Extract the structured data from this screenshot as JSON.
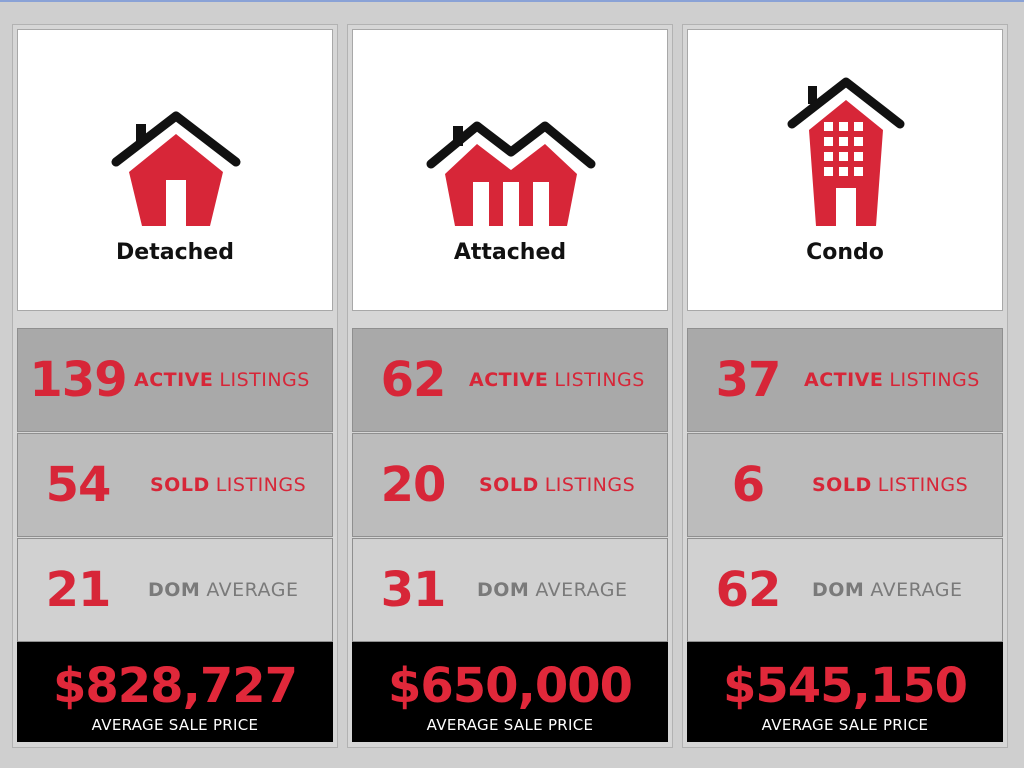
{
  "colors": {
    "accent_red": "#d72638",
    "roof_black": "#111111",
    "label_grey": "#7a7a7a",
    "price_bg": "#000000"
  },
  "columns": [
    {
      "type_label": "Detached",
      "icon": "detached-house-icon",
      "active_count": "139",
      "sold_count": "54",
      "dom_count": "21",
      "avg_price": "$828,727"
    },
    {
      "type_label": "Attached",
      "icon": "attached-house-icon",
      "active_count": "62",
      "sold_count": "20",
      "dom_count": "31",
      "avg_price": "$650,000"
    },
    {
      "type_label": "Condo",
      "icon": "condo-building-icon",
      "active_count": "37",
      "sold_count": "6",
      "dom_count": "62",
      "avg_price": "$545,150"
    }
  ],
  "labels": {
    "active_bold": "ACTIVE",
    "active_rest": "LISTINGS",
    "sold_bold": "SOLD",
    "sold_rest": "LISTINGS",
    "dom_bold": "DOM",
    "dom_rest": "AVERAGE",
    "avg_caption": "AVERAGE SALE PRICE"
  }
}
